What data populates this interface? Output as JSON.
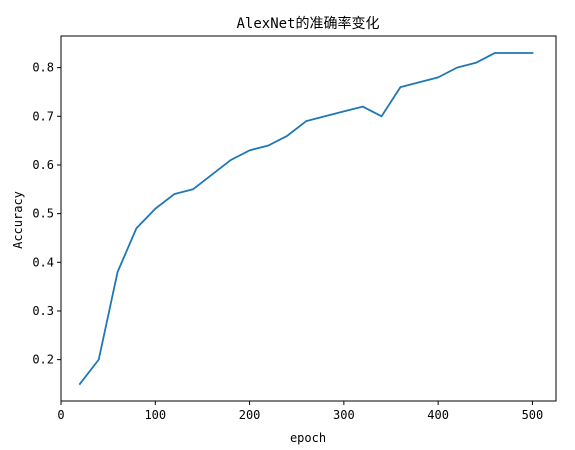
{
  "chart_data": {
    "type": "line",
    "title": "AlexNet的准确率变化",
    "xlabel": "epoch",
    "ylabel": "Accuracy",
    "xlim": [
      0,
      525
    ],
    "ylim": [
      0.115,
      0.865
    ],
    "x_ticks": [
      0,
      100,
      200,
      300,
      400,
      500
    ],
    "y_ticks": [
      0.2,
      0.3,
      0.4,
      0.5,
      0.6,
      0.7,
      0.8
    ],
    "x_tick_labels": [
      "0",
      "100",
      "200",
      "300",
      "400",
      "500"
    ],
    "y_tick_labels": [
      "0.2",
      "0.3",
      "0.4",
      "0.5",
      "0.6",
      "0.7",
      "0.8"
    ],
    "grid": false,
    "color": "#1f77b4",
    "x": [
      20,
      40,
      60,
      80,
      100,
      120,
      140,
      160,
      180,
      200,
      220,
      240,
      260,
      280,
      300,
      320,
      340,
      360,
      380,
      400,
      420,
      440,
      460,
      480,
      500
    ],
    "series": [
      {
        "values": [
          0.15,
          0.2,
          0.38,
          0.47,
          0.51,
          0.54,
          0.55,
          0.58,
          0.61,
          0.63,
          0.64,
          0.66,
          0.69,
          0.7,
          0.71,
          0.72,
          0.7,
          0.76,
          0.77,
          0.78,
          0.8,
          0.81,
          0.83,
          0.83,
          0.83
        ]
      }
    ]
  }
}
